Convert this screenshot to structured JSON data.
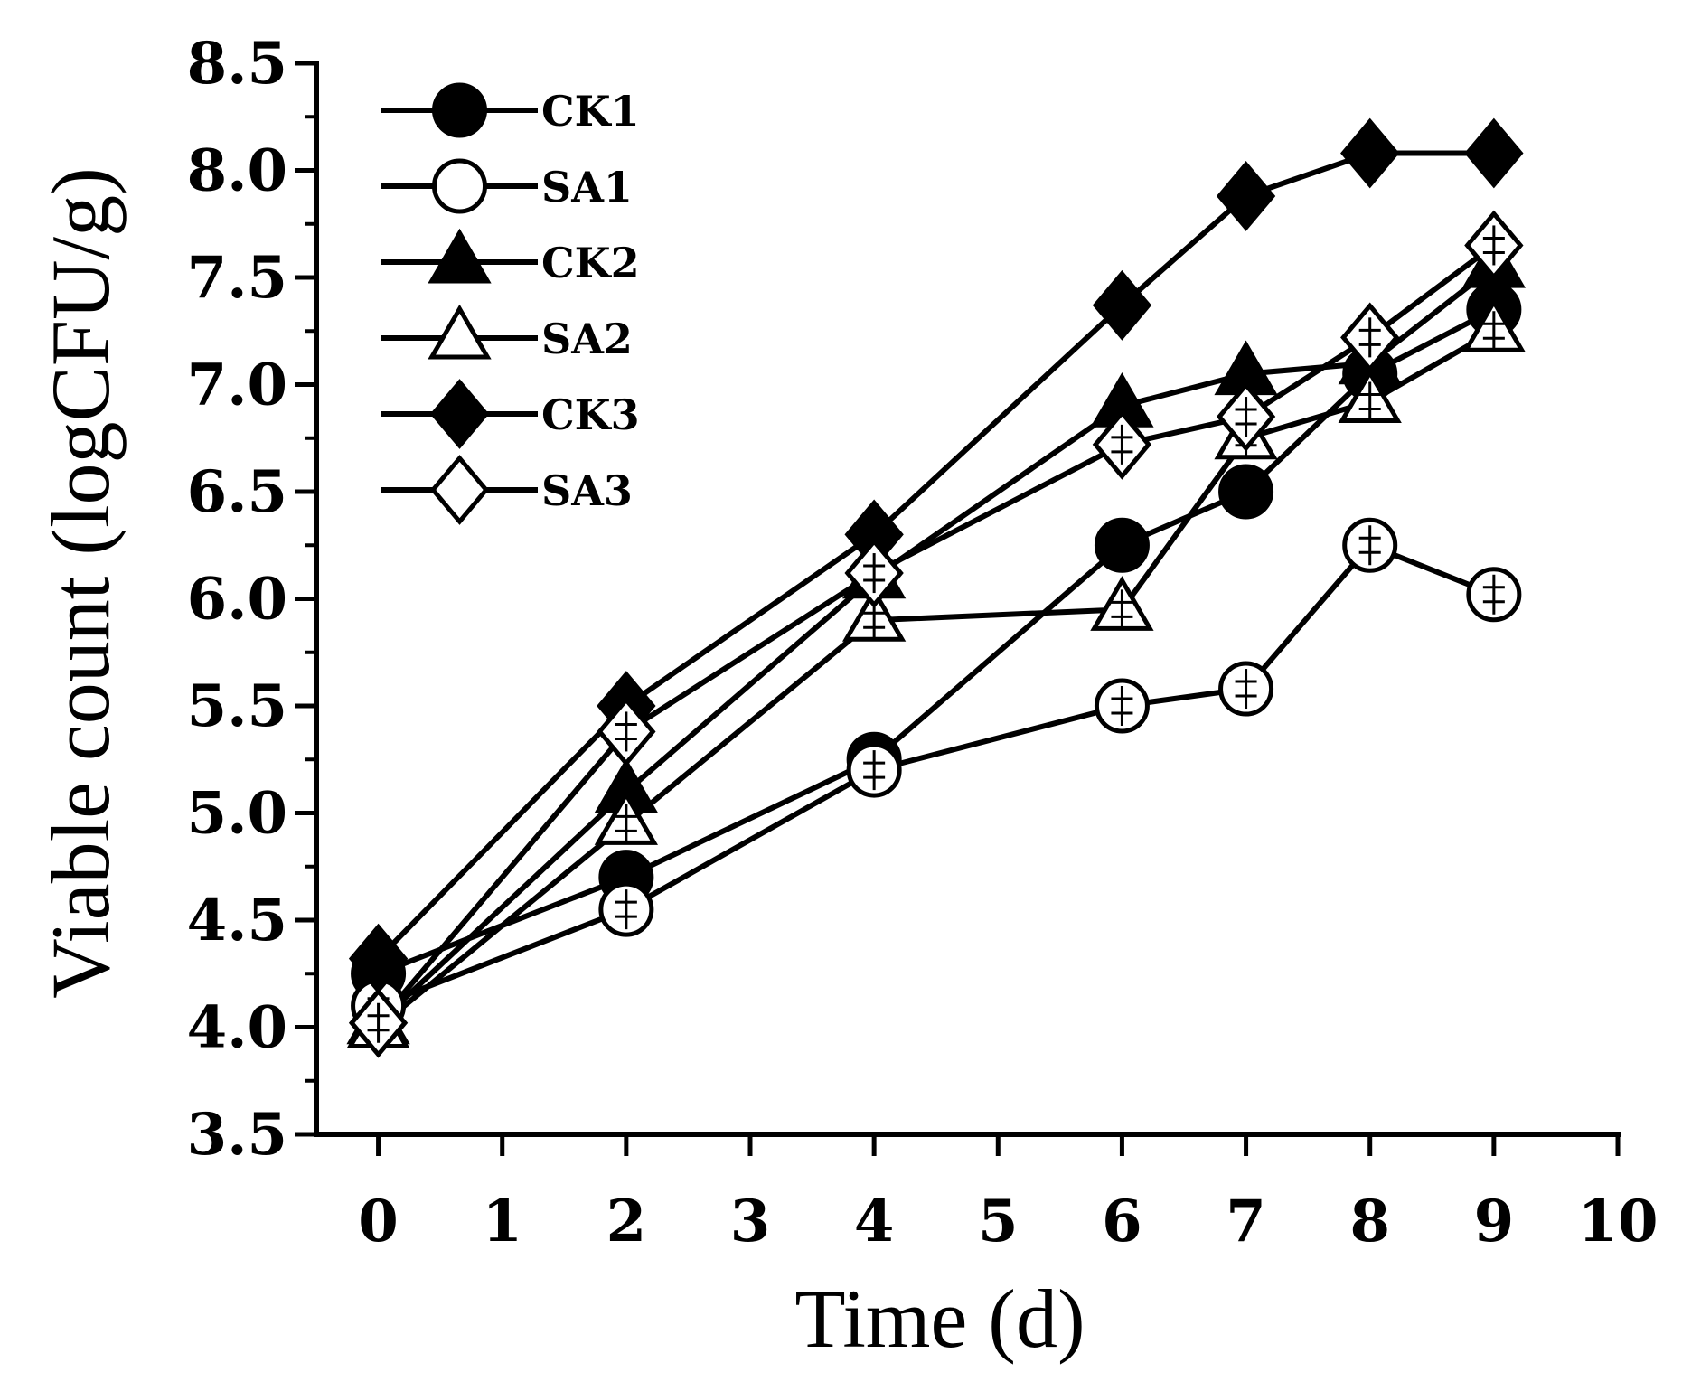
{
  "chart_data": {
    "type": "line",
    "title": "",
    "xlabel": "Time (d)",
    "ylabel": "Viable count (logCFU/g)",
    "xlim": [
      -0.5,
      10
    ],
    "ylim": [
      3.5,
      8.5
    ],
    "xticks": [
      0,
      1,
      2,
      3,
      4,
      5,
      6,
      7,
      8,
      9,
      10
    ],
    "xtick_labels": [
      "0",
      "1",
      "2",
      "3",
      "4",
      "5",
      "6",
      "7",
      "8",
      "9",
      "10"
    ],
    "yticks": [
      3.5,
      4.0,
      4.5,
      5.0,
      5.5,
      6.0,
      6.5,
      7.0,
      7.5,
      8.0,
      8.5
    ],
    "ytick_labels": [
      "3.5",
      "4.0",
      "4.5",
      "5.0",
      "5.5",
      "6.0",
      "6.5",
      "7.0",
      "7.5",
      "8.0",
      "8.5"
    ],
    "legend_position": "top-left",
    "x": [
      0,
      2,
      4,
      6,
      7,
      8,
      9
    ],
    "series": [
      {
        "name": "CK1",
        "marker": "circle",
        "filled": true,
        "values": [
          4.25,
          4.7,
          5.25,
          6.25,
          6.5,
          7.05,
          7.35
        ]
      },
      {
        "name": "SA1",
        "marker": "circle",
        "filled": false,
        "values": [
          4.1,
          4.55,
          5.2,
          5.5,
          5.58,
          6.25,
          6.02
        ]
      },
      {
        "name": "CK2",
        "marker": "triangle",
        "filled": true,
        "values": [
          4.02,
          5.1,
          6.1,
          6.9,
          7.05,
          7.1,
          7.55
        ]
      },
      {
        "name": "SA2",
        "marker": "triangle",
        "filled": false,
        "values": [
          4.0,
          4.95,
          5.9,
          5.95,
          6.75,
          6.92,
          7.25
        ]
      },
      {
        "name": "CK3",
        "marker": "diamond",
        "filled": true,
        "values": [
          4.32,
          5.5,
          6.3,
          7.37,
          7.88,
          8.08,
          8.08
        ]
      },
      {
        "name": "SA3",
        "marker": "diamond",
        "filled": false,
        "values": [
          4.02,
          5.38,
          6.12,
          6.72,
          6.85,
          7.22,
          7.65
        ]
      }
    ]
  }
}
